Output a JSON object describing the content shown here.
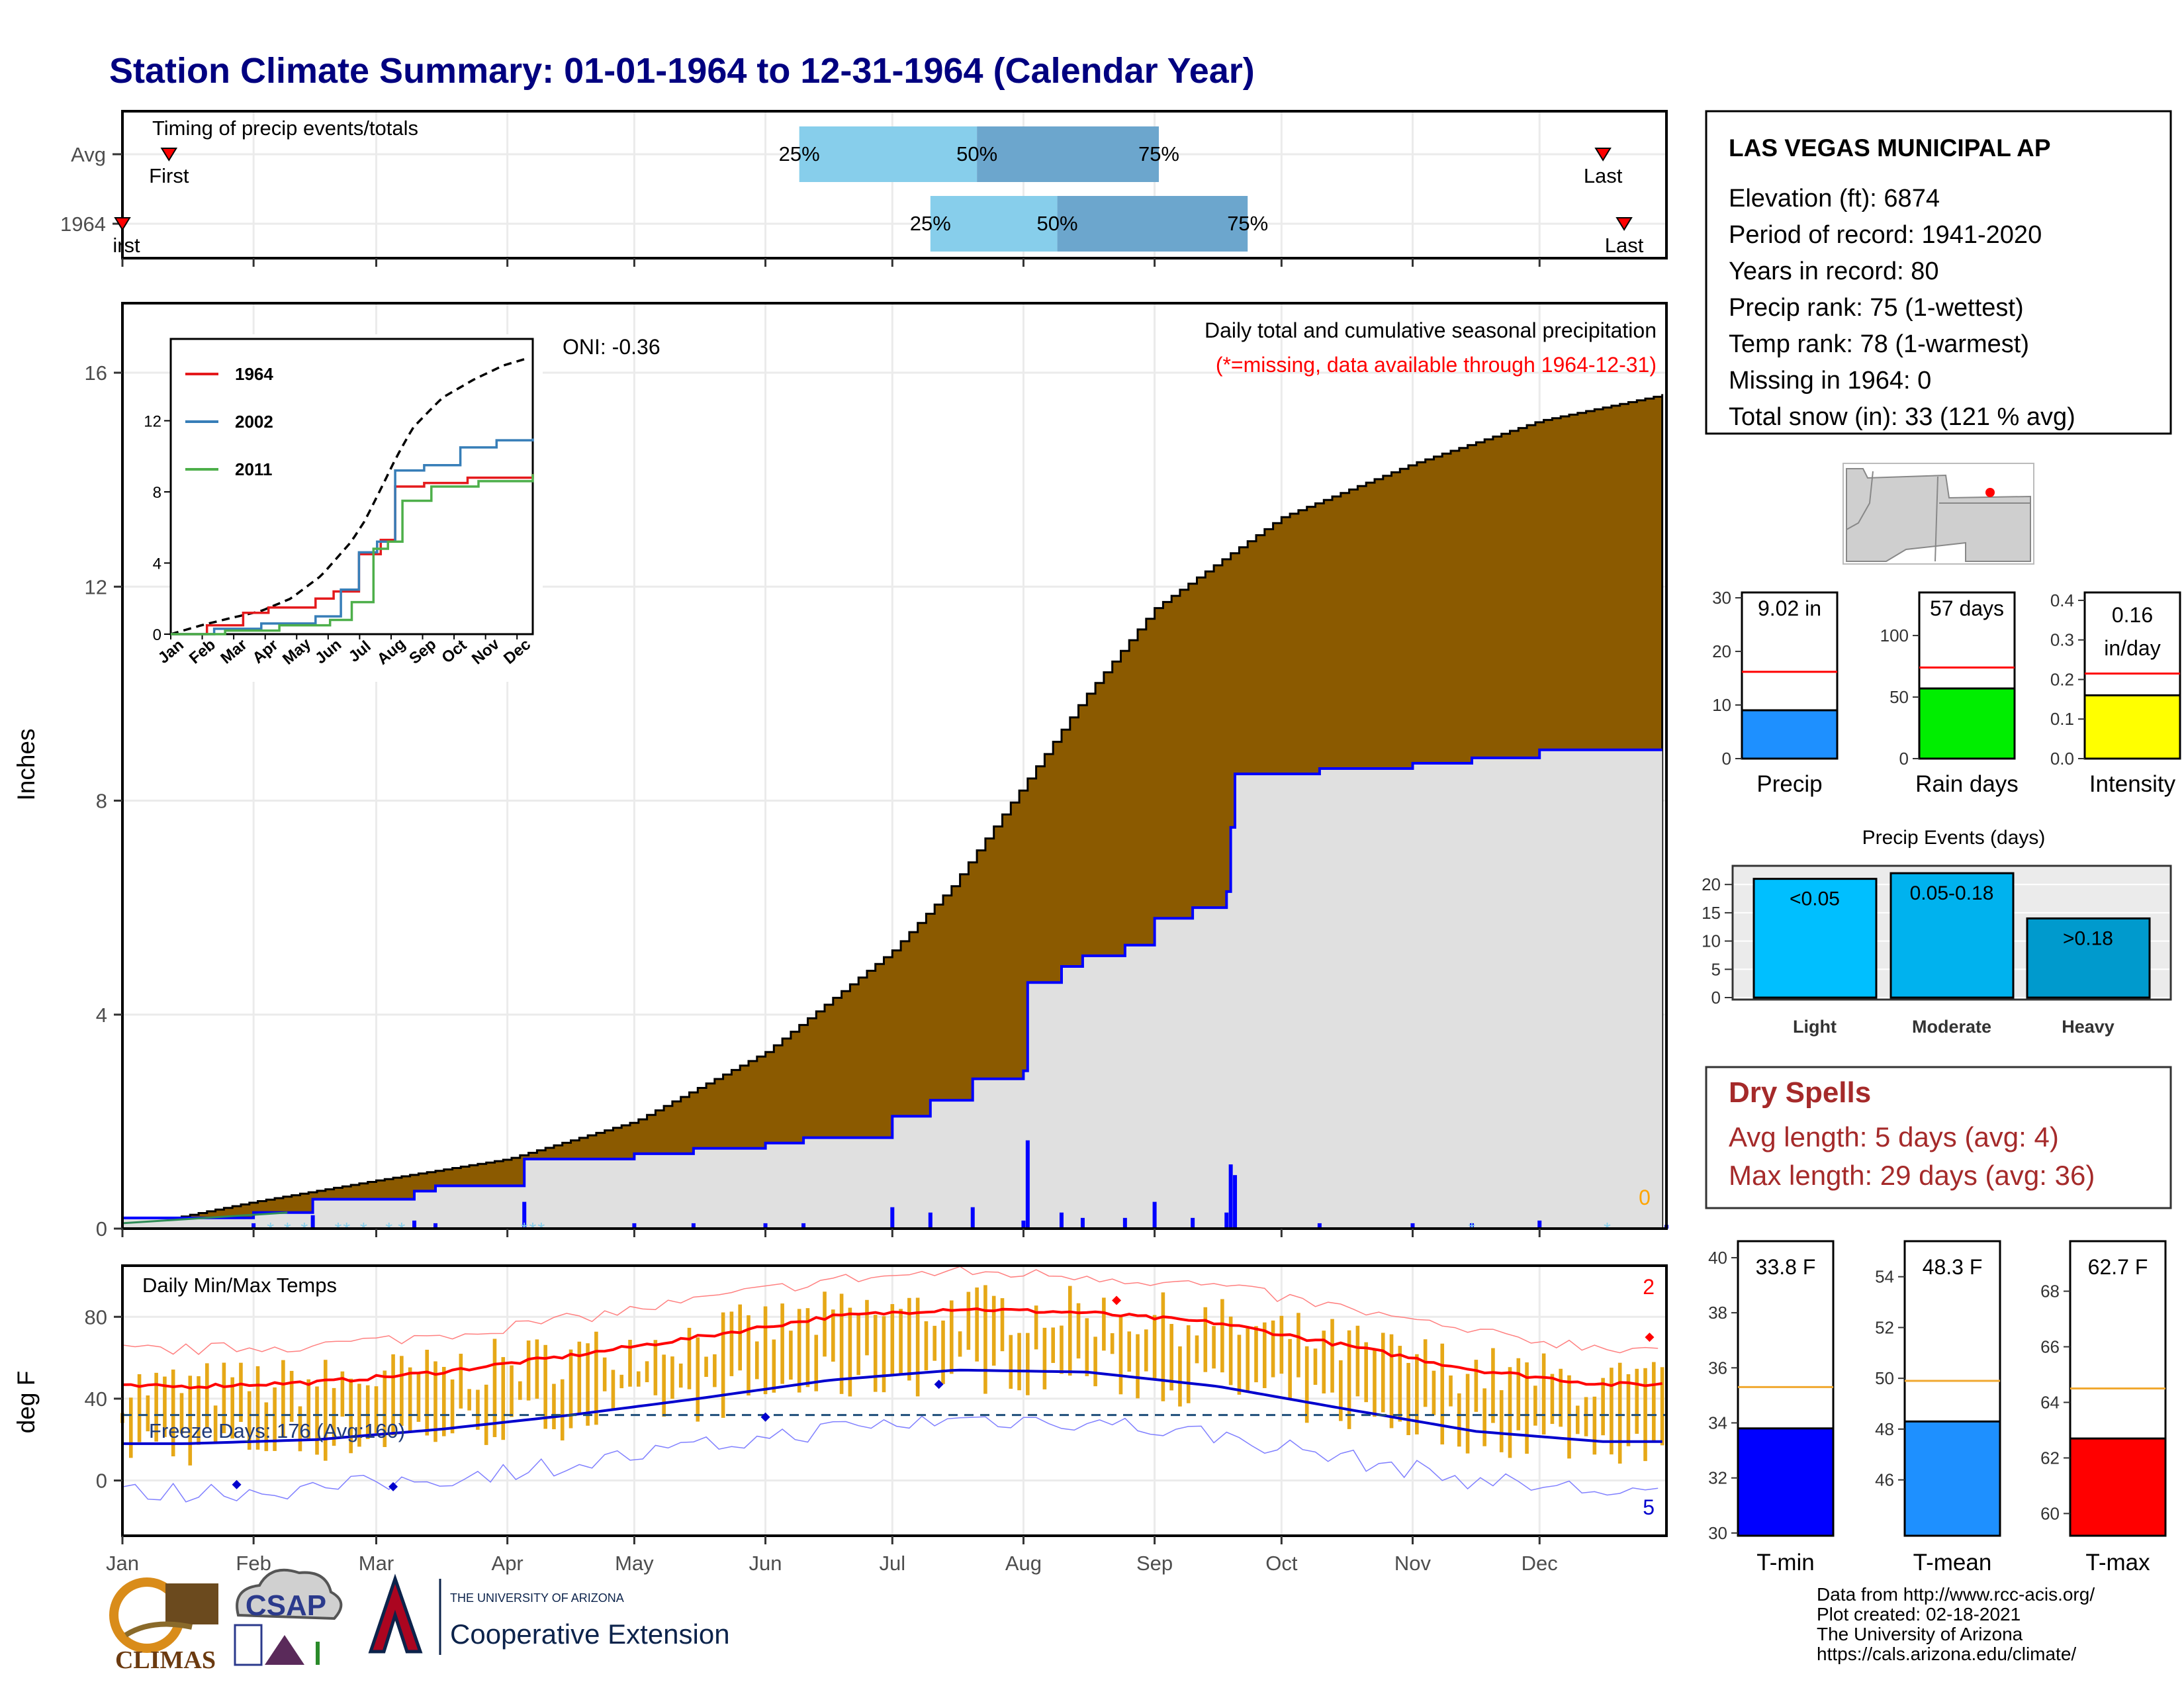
{
  "title": "Station Climate Summary: 01-01-1964 to 12-31-1964 (Calendar Year)",
  "timing": {
    "label": "Timing of precip events/totals",
    "rows": [
      "Avg",
      "1964"
    ],
    "pct_labels": [
      "25%",
      "50%",
      "75%"
    ],
    "first_label": "First",
    "first_label_1964": "irst",
    "last_label": "Last",
    "avg": {
      "first_doy": 12,
      "p25_doy": 161,
      "p50_doy": 203,
      "p75_doy": 246,
      "last_doy": 351
    },
    "y1964": {
      "first_doy": 1,
      "p25_doy": 192,
      "p50_doy": 222,
      "p75_doy": 267,
      "last_doy": 356
    }
  },
  "precip_panel": {
    "ylabel": "Inches",
    "oni": "ONI: -0.36",
    "title": "Daily total and cumulative seasonal precipitation",
    "note": "(*=missing, data available through 1964-12-31)",
    "corner_value": "0",
    "yticks": [
      0,
      4,
      8,
      12,
      16
    ],
    "ylim": [
      0,
      17.3
    ]
  },
  "inset": {
    "yticks": [
      0,
      4,
      8,
      12
    ],
    "months": [
      "Jan",
      "Feb",
      "Mar",
      "Apr",
      "May",
      "Jun",
      "Jul",
      "Aug",
      "Sep",
      "Oct",
      "Nov",
      "Dec"
    ],
    "legend": [
      "1964",
      "2002",
      "2011"
    ],
    "colors": [
      "#e41a1c",
      "#377eb8",
      "#4daf4a"
    ]
  },
  "months": [
    "Jan",
    "Feb",
    "Mar",
    "Apr",
    "May",
    "Jun",
    "Jul",
    "Aug",
    "Sep",
    "Oct",
    "Nov",
    "Dec"
  ],
  "temp_panel": {
    "ylabel": "deg F",
    "title": "Daily Min/Max Temps",
    "freeze": "Freeze Days: 176 (Avg:160)",
    "count_top": "2",
    "count_bottom": "5",
    "yticks": [
      0,
      40,
      80
    ],
    "ylim": [
      -27,
      105
    ]
  },
  "station": {
    "name": "LAS VEGAS MUNICIPAL AP",
    "lines": [
      "Elevation (ft): 6874",
      "Period of record: 1941-2020",
      "Years in record: 80",
      "Precip rank: 75 (1-wettest)",
      "Temp rank: 78 (1-warmest)",
      "Missing in 1964: 0",
      "Total snow (in): 33 (121 % avg)"
    ]
  },
  "summary_bars": [
    {
      "label": "Precip",
      "value_text": "9.02 in",
      "value": 9.02,
      "avg": 16.2,
      "ymax": 31,
      "ticks": [
        "0",
        "10",
        "20",
        "30"
      ],
      "tick_vals": [
        0,
        10,
        20,
        30
      ],
      "color": "#1e90ff"
    },
    {
      "label": "Rain days",
      "value_text": "57 days",
      "value": 57,
      "avg": 74,
      "ymax": 135,
      "ticks": [
        "0",
        "50",
        "100"
      ],
      "tick_vals": [
        0,
        50,
        100
      ],
      "color": "#00ee00"
    },
    {
      "label": "Intensity",
      "value_text": "0.16 in/day",
      "value": 0.16,
      "avg": 0.215,
      "ymax": 0.42,
      "ticks": [
        "0.0",
        "0.1",
        "0.2",
        "0.3",
        "0.4"
      ],
      "tick_vals": [
        0,
        0.1,
        0.2,
        0.3,
        0.4
      ],
      "color": "#ffff00"
    }
  ],
  "events": {
    "title": "Precip Events (days)",
    "categories": [
      "Light",
      "Moderate",
      "Heavy"
    ],
    "bar_labels": [
      "<0.05",
      "0.05-0.18",
      ">0.18"
    ],
    "values": [
      21,
      22,
      14
    ],
    "yticks": [
      0,
      5,
      10,
      15,
      20
    ],
    "colors": [
      "#00bfff",
      "#00b2ee",
      "#009acd"
    ]
  },
  "dry_spells": {
    "title": "Dry Spells",
    "avg_length": "Avg length: 5 days (avg: 4)",
    "max_length": "Max length: 29 days (avg: 36)"
  },
  "temp_bars": [
    {
      "label": "T-min",
      "value_text": "33.8 F",
      "value": 33.8,
      "avg": 35.3,
      "ymin": 29.9,
      "ymax": 40.6,
      "ticks": [
        30,
        32,
        34,
        36,
        38,
        40
      ],
      "color": "#0000ff"
    },
    {
      "label": "T-mean",
      "value_text": "48.3 F",
      "value": 48.3,
      "avg": 49.9,
      "ymin": 43.8,
      "ymax": 55.4,
      "ticks": [
        46,
        48,
        50,
        52,
        54
      ],
      "color": "#1e90ff"
    },
    {
      "label": "T-max",
      "value_text": "62.7 F",
      "value": 62.7,
      "avg": 64.5,
      "ymin": 59.2,
      "ymax": 69.8,
      "ticks": [
        60,
        62,
        64,
        66,
        68
      ],
      "color": "#ff0000"
    }
  ],
  "footer": {
    "lines": [
      "Data from http://www.rcc-acis.org/",
      "Plot created: 02-18-2021",
      "The University of Arizona",
      "https://cals.arizona.edu/climate/"
    ]
  },
  "logos": {
    "climas": "CLIMAS",
    "csap": "CSAP",
    "ua_small": "THE UNIVERSITY OF ARIZONA",
    "ua_big": "Cooperative Extension"
  },
  "chart_data": [
    {
      "type": "area",
      "title": "Daily total and cumulative seasonal precipitation",
      "ylabel": "Inches",
      "ylim": [
        0,
        17.3
      ],
      "x_unit": "month-day",
      "series": [
        {
          "name": "Avg",
          "points": [
            [
              "01-01",
              0
            ],
            [
              "02-01",
              0.5
            ],
            [
              "03-01",
              0.9
            ],
            [
              "04-01",
              1.3
            ],
            [
              "05-01",
              2.0
            ],
            [
              "06-01",
              3.3
            ],
            [
              "07-01",
              5.2
            ],
            [
              "07-15",
              6.4
            ],
            [
              "08-01",
              8.3
            ],
            [
              "08-15",
              9.9
            ],
            [
              "09-01",
              11.6
            ],
            [
              "09-15",
              12.4
            ],
            [
              "10-01",
              13.3
            ],
            [
              "11-01",
              14.3
            ],
            [
              "12-01",
              15.1
            ],
            [
              "12-31",
              15.6
            ]
          ]
        },
        {
          "name": "1964",
          "points": [
            [
              "01-01",
              0.2
            ],
            [
              "02-01",
              0.3
            ],
            [
              "02-15",
              0.55
            ],
            [
              "03-10",
              0.7
            ],
            [
              "03-15",
              0.8
            ],
            [
              "04-05",
              1.3
            ],
            [
              "05-01",
              1.4
            ],
            [
              "05-15",
              1.5
            ],
            [
              "06-01",
              1.6
            ],
            [
              "06-10",
              1.7
            ],
            [
              "07-01",
              2.1
            ],
            [
              "07-10",
              2.4
            ],
            [
              "07-20",
              2.8
            ],
            [
              "08-01",
              2.95
            ],
            [
              "08-02",
              4.6
            ],
            [
              "08-10",
              4.9
            ],
            [
              "08-15",
              5.1
            ],
            [
              "08-25",
              5.3
            ],
            [
              "09-01",
              5.8
            ],
            [
              "09-10",
              6.0
            ],
            [
              "09-18",
              6.3
            ],
            [
              "09-19",
              7.5
            ],
            [
              "09-20",
              8.5
            ],
            [
              "10-10",
              8.6
            ],
            [
              "11-01",
              8.7
            ],
            [
              "11-15",
              8.8
            ],
            [
              "12-01",
              8.95
            ],
            [
              "12-31",
              9.02
            ]
          ]
        }
      ]
    },
    {
      "type": "line",
      "title": "Daily Min/Max Temps",
      "ylabel": "deg F",
      "ylim": [
        -27,
        105
      ],
      "series": [
        {
          "name": "Avg Max",
          "months": [
            "Jan",
            "Feb",
            "Mar",
            "Apr",
            "May",
            "Jun",
            "Jul",
            "Aug",
            "Sep",
            "Oct",
            "Nov",
            "Dec"
          ],
          "values": [
            46,
            48,
            53,
            61,
            70,
            80,
            84,
            82,
            77,
            66,
            54,
            47
          ]
        },
        {
          "name": "Avg Min",
          "months": [
            "Jan",
            "Feb",
            "Mar",
            "Apr",
            "May",
            "Jun",
            "Jul",
            "Aug",
            "Sep",
            "Oct",
            "Nov",
            "Dec"
          ],
          "values": [
            18,
            20,
            25,
            32,
            40,
            49,
            54,
            53,
            46,
            35,
            24,
            19
          ]
        }
      ],
      "freeze_line": 32
    },
    {
      "type": "bar",
      "title": "Precip Events (days)",
      "categories": [
        "Light",
        "Moderate",
        "Heavy"
      ],
      "values": [
        21,
        22,
        14
      ]
    }
  ]
}
